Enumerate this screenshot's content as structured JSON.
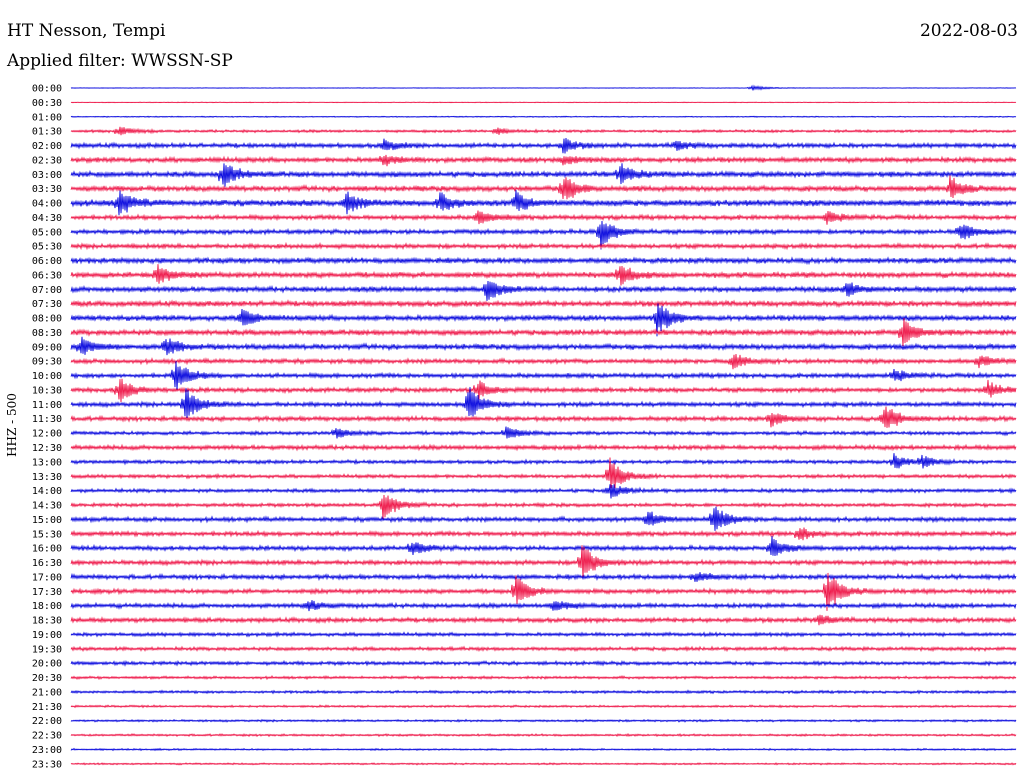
{
  "header": {
    "station": "HT Nesson, Tempi",
    "date": "2022-08-03",
    "filter": "Applied filter: WWSSN-SP"
  },
  "y_axis_label": "HHZ - 500",
  "colors": {
    "even_trace": "#0000dd",
    "odd_trace": "#ee1144"
  },
  "chart_data": {
    "type": "line",
    "title": "HT Nesson, Tempi",
    "subtitle": "Applied filter: WWSSN-SP",
    "ylabel": "HHZ - 500",
    "rows": [
      "00:00",
      "00:30",
      "01:00",
      "01:30",
      "02:00",
      "02:30",
      "03:00",
      "03:30",
      "04:00",
      "04:30",
      "05:00",
      "05:30",
      "06:00",
      "06:30",
      "07:00",
      "07:30",
      "08:00",
      "08:30",
      "09:00",
      "09:30",
      "10:00",
      "10:30",
      "11:00",
      "11:30",
      "12:00",
      "12:30",
      "13:00",
      "13:30",
      "14:00",
      "14:30",
      "15:00",
      "15:30",
      "16:00",
      "16:30",
      "17:00",
      "17:30",
      "18:00",
      "18:30",
      "19:00",
      "19:30",
      "20:00",
      "20:30",
      "21:00",
      "21:30",
      "22:00",
      "22:30",
      "23:00",
      "23:30"
    ],
    "trace_colors": [
      "blue",
      "red"
    ],
    "noise_level": [
      0.3,
      0.4,
      0.6,
      1.5,
      2.5,
      2.8,
      3,
      3,
      3.5,
      2.5,
      2.5,
      2.5,
      3,
      3,
      3,
      3,
      3,
      3,
      3,
      2.5,
      2.5,
      2.5,
      2.5,
      2.5,
      2,
      2.5,
      2,
      2,
      2,
      2,
      2.5,
      2.5,
      2.5,
      2.5,
      2.5,
      2.5,
      2.5,
      2.5,
      2,
      2,
      2,
      1.5,
      1.5,
      1.2,
      1.2,
      1.2,
      1,
      1
    ],
    "events": [
      {
        "row": "00:00",
        "x": 0.72,
        "amplitude": 3
      },
      {
        "row": "01:30",
        "x": 0.05,
        "amplitude": 5
      },
      {
        "row": "01:30",
        "x": 0.45,
        "amplitude": 4
      },
      {
        "row": "02:00",
        "x": 0.33,
        "amplitude": 6
      },
      {
        "row": "02:00",
        "x": 0.52,
        "amplitude": 8
      },
      {
        "row": "02:00",
        "x": 0.64,
        "amplitude": 5
      },
      {
        "row": "02:30",
        "x": 0.33,
        "amplitude": 6
      },
      {
        "row": "02:30",
        "x": 0.52,
        "amplitude": 5
      },
      {
        "row": "03:00",
        "x": 0.16,
        "amplitude": 16
      },
      {
        "row": "03:00",
        "x": 0.58,
        "amplitude": 12
      },
      {
        "row": "03:30",
        "x": 0.52,
        "amplitude": 16
      },
      {
        "row": "03:30",
        "x": 0.93,
        "amplitude": 12
      },
      {
        "row": "04:00",
        "x": 0.05,
        "amplitude": 14
      },
      {
        "row": "04:00",
        "x": 0.29,
        "amplitude": 12
      },
      {
        "row": "04:00",
        "x": 0.39,
        "amplitude": 9
      },
      {
        "row": "04:00",
        "x": 0.47,
        "amplitude": 11
      },
      {
        "row": "04:30",
        "x": 0.43,
        "amplitude": 8
      },
      {
        "row": "04:30",
        "x": 0.8,
        "amplitude": 7
      },
      {
        "row": "05:00",
        "x": 0.56,
        "amplitude": 18
      },
      {
        "row": "05:00",
        "x": 0.94,
        "amplitude": 10
      },
      {
        "row": "06:30",
        "x": 0.09,
        "amplitude": 12
      },
      {
        "row": "06:30",
        "x": 0.58,
        "amplitude": 12
      },
      {
        "row": "07:00",
        "x": 0.44,
        "amplitude": 12
      },
      {
        "row": "07:00",
        "x": 0.82,
        "amplitude": 8
      },
      {
        "row": "08:00",
        "x": 0.18,
        "amplitude": 10
      },
      {
        "row": "08:00",
        "x": 0.62,
        "amplitude": 18
      },
      {
        "row": "08:30",
        "x": 0.88,
        "amplitude": 14
      },
      {
        "row": "09:00",
        "x": 0.01,
        "amplitude": 10
      },
      {
        "row": "09:00",
        "x": 0.1,
        "amplitude": 10
      },
      {
        "row": "09:30",
        "x": 0.7,
        "amplitude": 8
      },
      {
        "row": "09:30",
        "x": 0.96,
        "amplitude": 6
      },
      {
        "row": "10:00",
        "x": 0.11,
        "amplitude": 18
      },
      {
        "row": "10:00",
        "x": 0.87,
        "amplitude": 7
      },
      {
        "row": "10:30",
        "x": 0.05,
        "amplitude": 14
      },
      {
        "row": "10:30",
        "x": 0.43,
        "amplitude": 10
      },
      {
        "row": "10:30",
        "x": 0.97,
        "amplitude": 9
      },
      {
        "row": "11:00",
        "x": 0.12,
        "amplitude": 18
      },
      {
        "row": "11:00",
        "x": 0.42,
        "amplitude": 20
      },
      {
        "row": "11:30",
        "x": 0.74,
        "amplitude": 8
      },
      {
        "row": "11:30",
        "x": 0.86,
        "amplitude": 16
      },
      {
        "row": "12:00",
        "x": 0.28,
        "amplitude": 6
      },
      {
        "row": "12:00",
        "x": 0.46,
        "amplitude": 7
      },
      {
        "row": "13:00",
        "x": 0.87,
        "amplitude": 8
      },
      {
        "row": "13:00",
        "x": 0.9,
        "amplitude": 6
      },
      {
        "row": "13:30",
        "x": 0.57,
        "amplitude": 18
      },
      {
        "row": "14:00",
        "x": 0.57,
        "amplitude": 8
      },
      {
        "row": "14:30",
        "x": 0.33,
        "amplitude": 16
      },
      {
        "row": "15:00",
        "x": 0.61,
        "amplitude": 10
      },
      {
        "row": "15:00",
        "x": 0.68,
        "amplitude": 16
      },
      {
        "row": "15:30",
        "x": 0.77,
        "amplitude": 7
      },
      {
        "row": "16:00",
        "x": 0.36,
        "amplitude": 8
      },
      {
        "row": "16:00",
        "x": 0.74,
        "amplitude": 12
      },
      {
        "row": "16:30",
        "x": 0.54,
        "amplitude": 20
      },
      {
        "row": "17:00",
        "x": 0.66,
        "amplitude": 6
      },
      {
        "row": "17:30",
        "x": 0.47,
        "amplitude": 16
      },
      {
        "row": "17:30",
        "x": 0.8,
        "amplitude": 22
      },
      {
        "row": "18:00",
        "x": 0.25,
        "amplitude": 6
      },
      {
        "row": "18:00",
        "x": 0.51,
        "amplitude": 7
      },
      {
        "row": "18:30",
        "x": 0.79,
        "amplitude": 6
      }
    ]
  }
}
